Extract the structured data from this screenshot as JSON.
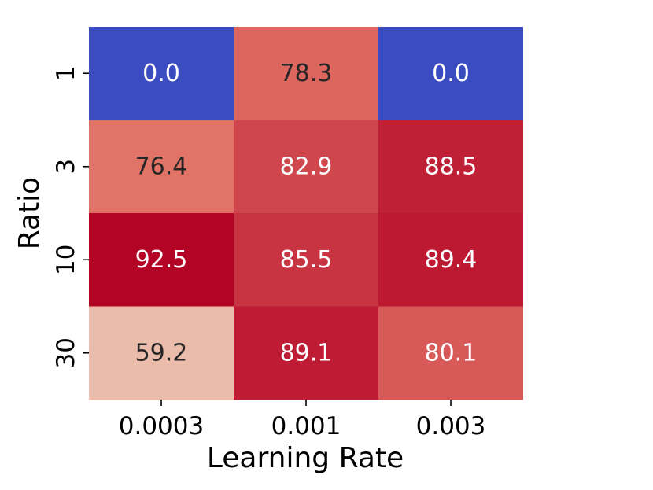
{
  "chart_data": {
    "type": "heatmap",
    "title": "",
    "xlabel": "Learning Rate",
    "ylabel": "Ratio",
    "x_categories": [
      "0.0003",
      "0.001",
      "0.003"
    ],
    "y_categories": [
      "1",
      "3",
      "10",
      "30"
    ],
    "values": [
      [
        0.0,
        78.3,
        0.0
      ],
      [
        76.4,
        82.9,
        88.5
      ],
      [
        92.5,
        85.5,
        89.4
      ],
      [
        59.2,
        89.1,
        80.1
      ]
    ],
    "cell_labels": [
      [
        "0.0",
        "78.3",
        "0.0"
      ],
      [
        "76.4",
        "82.9",
        "88.5"
      ],
      [
        "92.5",
        "85.5",
        "89.4"
      ],
      [
        "59.2",
        "89.1",
        "80.1"
      ]
    ],
    "colormap": "coolwarm",
    "colorbar": false,
    "grid": false,
    "colors": {
      "low": "#3b4cc0",
      "mid": "#dddcdc",
      "high": "#b40426",
      "text_dark": "#262626",
      "text_light": "#ffffff"
    }
  }
}
